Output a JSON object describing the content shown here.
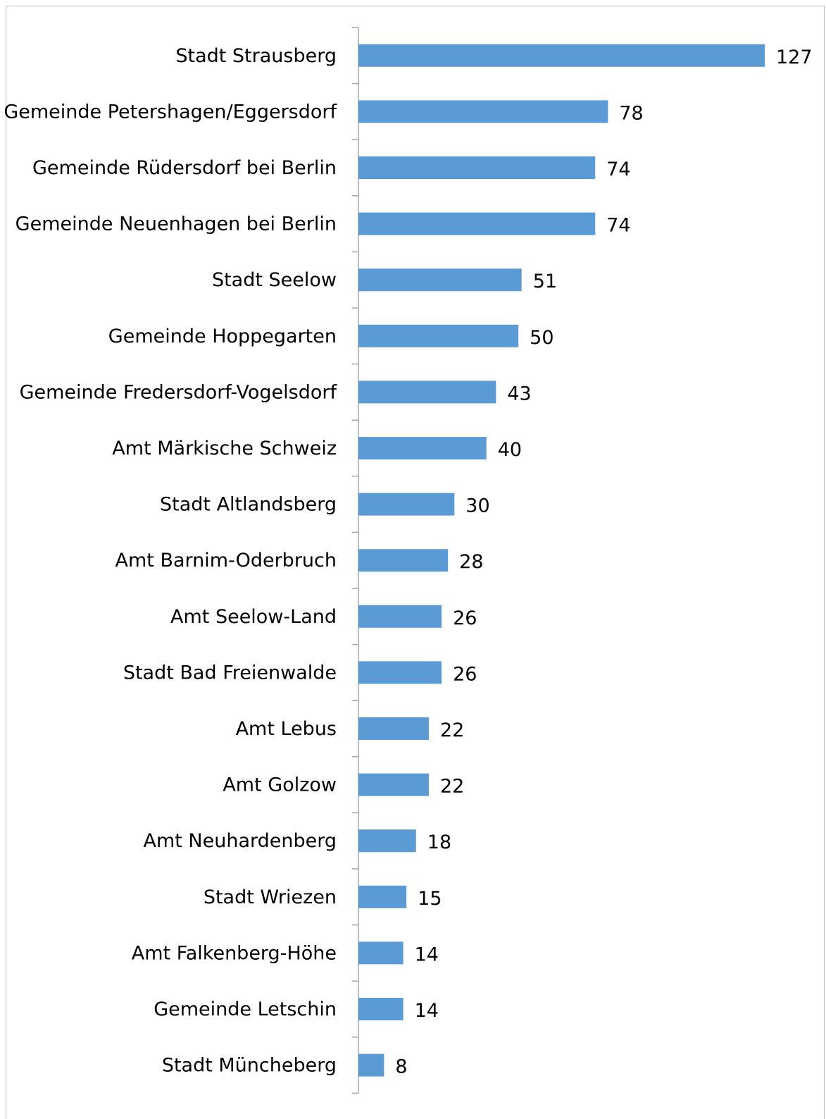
{
  "chart_data": {
    "type": "bar",
    "orientation": "horizontal",
    "categories": [
      "Stadt Strausberg",
      "Gemeinde Petershagen/Eggersdorf",
      "Gemeinde Rüdersdorf bei Berlin",
      "Gemeinde Neuenhagen bei Berlin",
      "Stadt Seelow",
      "Gemeinde Hoppegarten",
      "Gemeinde Fredersdorf-Vogelsdorf",
      "Amt Märkische Schweiz",
      "Stadt Altlandsberg",
      "Amt Barnim-Oderbruch",
      "Amt Seelow-Land",
      "Stadt Bad Freienwalde",
      "Amt Lebus",
      "Amt Golzow",
      "Amt Neuhardenberg",
      "Stadt Wriezen",
      "Amt Falkenberg-Höhe",
      "Gemeinde Letschin",
      "Stadt Müncheberg"
    ],
    "values": [
      127,
      78,
      74,
      74,
      51,
      50,
      43,
      40,
      30,
      28,
      26,
      26,
      22,
      22,
      18,
      15,
      14,
      14,
      8
    ],
    "xlim": [
      0,
      127
    ],
    "data_labels": true,
    "grid": false,
    "legend": "none",
    "colors": {
      "bar": "#5B9BD5",
      "axis": "#a6a6a6",
      "frame": "#bfbfbf",
      "text": "#000000"
    }
  }
}
